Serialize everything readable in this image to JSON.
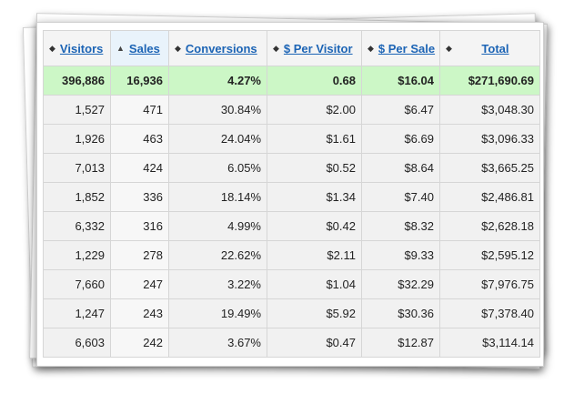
{
  "columns": [
    {
      "key": "visitors",
      "label": "Visitors",
      "sort": "both"
    },
    {
      "key": "sales",
      "label": "Sales",
      "sort": "asc"
    },
    {
      "key": "conversions",
      "label": "Conversions",
      "sort": "both"
    },
    {
      "key": "per_visitor",
      "label": "$ Per Visitor",
      "sort": "both"
    },
    {
      "key": "per_sale",
      "label": "$ Per Sale",
      "sort": "both"
    },
    {
      "key": "total",
      "label": "Total",
      "sort": "both"
    }
  ],
  "icons": {
    "sort_both": "sort-both-icon",
    "sort_asc": "sort-ascending-icon"
  },
  "colors": {
    "link": "#1c64b5",
    "total_row": "#ccf7c6",
    "sorted_header": "#e9f3fb"
  },
  "totals": [
    "396,886",
    "16,936",
    "4.27%",
    "0.68",
    "$16.04",
    "$271,690.69"
  ],
  "rows": [
    [
      "1,527",
      "471",
      "30.84%",
      "$2.00",
      "$6.47",
      "$3,048.30"
    ],
    [
      "1,926",
      "463",
      "24.04%",
      "$1.61",
      "$6.69",
      "$3,096.33"
    ],
    [
      "7,013",
      "424",
      "6.05%",
      "$0.52",
      "$8.64",
      "$3,665.25"
    ],
    [
      "1,852",
      "336",
      "18.14%",
      "$1.34",
      "$7.40",
      "$2,486.81"
    ],
    [
      "6,332",
      "316",
      "4.99%",
      "$0.42",
      "$8.32",
      "$2,628.18"
    ],
    [
      "1,229",
      "278",
      "22.62%",
      "$2.11",
      "$9.33",
      "$2,595.12"
    ],
    [
      "7,660",
      "247",
      "3.22%",
      "$1.04",
      "$32.29",
      "$7,976.75"
    ],
    [
      "1,247",
      "243",
      "19.49%",
      "$5.92",
      "$30.36",
      "$7,378.40"
    ],
    [
      "6,603",
      "242",
      "3.67%",
      "$0.47",
      "$12.87",
      "$3,114.14"
    ]
  ]
}
